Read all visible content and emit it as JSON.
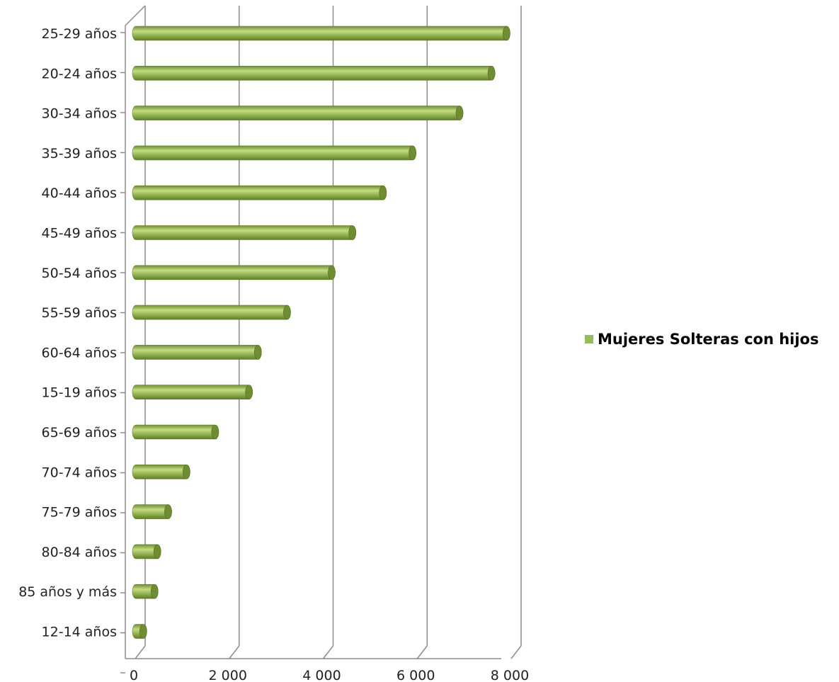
{
  "chart_data": {
    "type": "bar",
    "orientation": "horizontal",
    "categories": [
      "25-29 años",
      "20-24 años",
      "30-34 años",
      "35-39 años",
      "40-44 años",
      "45-49 años",
      "50-54 años",
      "55-59 años",
      "60-64 años",
      "15-19 años",
      "65-69 años",
      "70-74 años",
      "75-79 años",
      "80-84 años",
      "85 años y más",
      "12-14 años"
    ],
    "series": [
      {
        "name": "Mujeres Solteras con hijos",
        "values": [
          7900,
          7580,
          6900,
          5900,
          5270,
          4620,
          4180,
          3230,
          2610,
          2420,
          1700,
          1090,
          700,
          470,
          410,
          170
        ]
      }
    ],
    "x_ticks": [
      "0",
      "2 000",
      "4 000",
      "6 000",
      "8 000"
    ],
    "xlim": [
      0,
      8000
    ],
    "grid": true,
    "legend_position": "right",
    "colors": {
      "bar": "#9BBB59",
      "bar_light": "#c4dc82",
      "bar_dark": "#6f8e33",
      "grid": "#8c8c8c"
    }
  }
}
